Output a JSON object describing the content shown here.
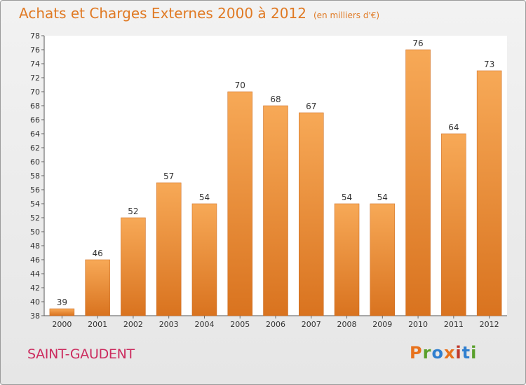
{
  "chart_data": {
    "type": "bar",
    "title": "Achats et Charges Externes 2000 à 2012",
    "subtitle": "(en milliers d'€)",
    "categories": [
      "2000",
      "2001",
      "2002",
      "2003",
      "2004",
      "2005",
      "2006",
      "2007",
      "2008",
      "2009",
      "2010",
      "2011",
      "2012"
    ],
    "values": [
      39,
      46,
      52,
      57,
      54,
      70,
      68,
      67,
      54,
      54,
      76,
      64,
      73
    ],
    "xlabel": "",
    "ylabel": "",
    "ylim": [
      38,
      78
    ],
    "yticks": [
      38,
      40,
      42,
      44,
      46,
      48,
      50,
      52,
      54,
      56,
      58,
      60,
      62,
      64,
      66,
      68,
      70,
      72,
      74,
      76,
      78
    ],
    "grid": false,
    "legend": "none",
    "bar_color": "#f08c32",
    "bar_color_light": "#f7a957",
    "bar_color_dark": "#d9731f"
  },
  "commune": "SAINT-GAUDENT",
  "logo": {
    "text": "Proxiti",
    "letters": [
      "P",
      "r",
      "o",
      "x",
      "i",
      "t",
      "i"
    ],
    "colors": [
      "#e8721c",
      "#5aa02c",
      "#2f7fcf",
      "#e8721c",
      "#c0392b",
      "#2f7fcf",
      "#5aa02c"
    ]
  }
}
